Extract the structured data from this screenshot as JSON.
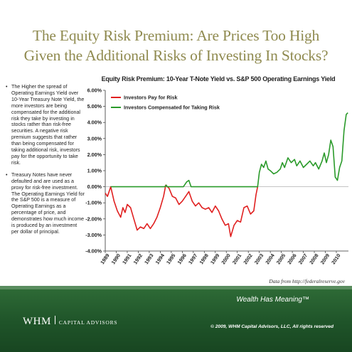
{
  "header": {
    "title_line1": "The Equity Risk Premium: Are Prices Too High",
    "title_line2": "Given the Additional Risks of Investing In Stocks?"
  },
  "sidebar": {
    "bullets": [
      "The Higher the spread of Operating Earnings Yield over 10-Year Treasury Note Yield, the more investors are being compensated for the additional risk they take by investing in stocks rather than risk-free securities. A negative risk premium suggests that rather than being compensated for taking additional risk, investors pay for the opportunity to take risk.",
      "Treasury Notes have never defaulted and are used as a proxy for risk-free investment. The Operating Earnings Yield for the S&P 500 is a measure of Operating Earnings as a percentage of price, and demonstrates how much income is produced by an investment per dollar of principal."
    ]
  },
  "source": "Data from http://federalreserve.gov",
  "footer": {
    "tagline": "Wealth Has Meaning™",
    "logo_main": "WHM",
    "logo_sub": "CAPITAL ADVISORS",
    "copyright": "© 2009, WHM Capital Advisors, LLC, All rights reserved"
  },
  "chart_data": {
    "type": "line",
    "title": "Equity Risk Premium:  10-Year T-Note Yield vs. S&P 500 Operating Earnings Yield",
    "xlabel": "",
    "ylabel": "",
    "ylim": [
      -4.0,
      6.0
    ],
    "xlim": [
      1989.0,
      2011.1
    ],
    "y_ticks": [
      "6.00%",
      "5.00%",
      "4.00%",
      "3.00%",
      "2.00%",
      "1.00%",
      "0.00%",
      "-1.00%",
      "-2.00%",
      "-3.00%",
      "-4.00%"
    ],
    "x_ticks": [
      "1989",
      "1990",
      "1991",
      "1992",
      "1993",
      "1994",
      "1995",
      "1996",
      "1997",
      "1998",
      "1999",
      "2000",
      "2001",
      "2002",
      "2003",
      "2004",
      "2005",
      "2006",
      "2007",
      "2008",
      "2009",
      "2010"
    ],
    "grid": false,
    "legend_position": "top-left",
    "colors": {
      "negative": "#e02020",
      "positive": "#2a9a2a",
      "axis": "#333333"
    },
    "series": [
      {
        "name": "Investors Pay for Risk",
        "color": "#e02020",
        "points": [
          [
            1989.0,
            -0.4
          ],
          [
            1989.2,
            -0.6
          ],
          [
            1989.5,
            0.0
          ],
          [
            1989.8,
            -0.9
          ],
          [
            1990.1,
            -1.5
          ],
          [
            1990.4,
            -1.9
          ],
          [
            1990.6,
            -1.3
          ],
          [
            1990.8,
            -1.6
          ],
          [
            1991.0,
            -1.1
          ],
          [
            1991.3,
            -1.3
          ],
          [
            1991.6,
            -2.0
          ],
          [
            1991.9,
            -2.7
          ],
          [
            1992.2,
            -2.5
          ],
          [
            1992.5,
            -2.6
          ],
          [
            1992.8,
            -2.3
          ],
          [
            1993.1,
            -2.6
          ],
          [
            1993.4,
            -2.3
          ],
          [
            1993.7,
            -1.9
          ],
          [
            1994.0,
            -1.3
          ],
          [
            1994.3,
            -0.6
          ],
          [
            1994.5,
            0.1
          ],
          [
            1994.8,
            -0.1
          ],
          [
            1995.1,
            -0.6
          ],
          [
            1995.4,
            -0.7
          ],
          [
            1995.7,
            -1.1
          ],
          [
            1996.0,
            -0.9
          ],
          [
            1996.3,
            -0.6
          ],
          [
            1996.6,
            -0.3
          ],
          [
            1996.9,
            -0.9
          ],
          [
            1997.2,
            -1.2
          ],
          [
            1997.5,
            -1.0
          ],
          [
            1997.8,
            -1.3
          ],
          [
            1998.1,
            -1.4
          ],
          [
            1998.4,
            -1.3
          ],
          [
            1998.7,
            -1.6
          ],
          [
            1999.0,
            -1.2
          ],
          [
            1999.3,
            -1.5
          ],
          [
            1999.6,
            -2.0
          ],
          [
            1999.9,
            -2.4
          ],
          [
            2000.2,
            -2.3
          ],
          [
            2000.4,
            -3.1
          ],
          [
            2000.7,
            -2.4
          ],
          [
            2001.0,
            -2.1
          ],
          [
            2001.3,
            -2.2
          ],
          [
            2001.6,
            -1.3
          ],
          [
            2001.9,
            -1.2
          ],
          [
            2002.2,
            -1.7
          ],
          [
            2002.5,
            -1.5
          ],
          [
            2002.7,
            -0.5
          ],
          [
            2002.85,
            0.0
          ]
        ]
      },
      {
        "name": "Investors Compensated for Taking Risk",
        "color": "#2a9a2a",
        "points": [
          [
            1989.5,
            0.0
          ],
          [
            1989.6,
            0.0
          ],
          [
            1994.4,
            0.0
          ],
          [
            1994.55,
            0.1
          ],
          [
            1994.6,
            0.0
          ],
          [
            1996.1,
            0.0
          ],
          [
            1996.4,
            0.3
          ],
          [
            1996.6,
            0.4
          ],
          [
            1996.8,
            0.0
          ],
          [
            2002.85,
            0.0
          ],
          [
            2003.0,
            0.9
          ],
          [
            2003.2,
            1.4
          ],
          [
            2003.4,
            1.2
          ],
          [
            2003.6,
            1.6
          ],
          [
            2003.8,
            1.1
          ],
          [
            2004.0,
            1.0
          ],
          [
            2004.3,
            0.8
          ],
          [
            2004.6,
            0.9
          ],
          [
            2004.9,
            1.1
          ],
          [
            2005.1,
            1.5
          ],
          [
            2005.3,
            1.2
          ],
          [
            2005.6,
            1.8
          ],
          [
            2005.9,
            1.5
          ],
          [
            2006.2,
            1.7
          ],
          [
            2006.4,
            1.3
          ],
          [
            2006.7,
            1.6
          ],
          [
            2007.0,
            1.2
          ],
          [
            2007.3,
            1.4
          ],
          [
            2007.6,
            1.6
          ],
          [
            2007.9,
            1.3
          ],
          [
            2008.1,
            1.5
          ],
          [
            2008.4,
            1.1
          ],
          [
            2008.7,
            1.6
          ],
          [
            2008.9,
            2.1
          ],
          [
            2009.1,
            1.5
          ],
          [
            2009.3,
            2.0
          ],
          [
            2009.5,
            2.9
          ],
          [
            2009.7,
            2.5
          ],
          [
            2009.9,
            0.6
          ],
          [
            2010.1,
            0.4
          ],
          [
            2010.3,
            1.2
          ],
          [
            2010.5,
            1.6
          ],
          [
            2010.7,
            3.5
          ],
          [
            2010.9,
            4.5
          ],
          [
            2011.05,
            4.6
          ]
        ]
      }
    ]
  }
}
